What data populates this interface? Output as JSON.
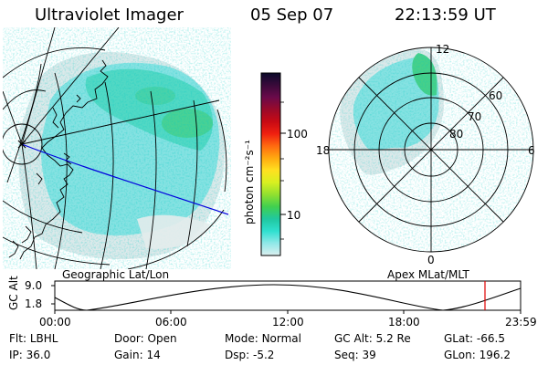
{
  "header": {
    "instrument": "Ultraviolet Imager",
    "date": "05 Sep 07",
    "time": "22:13:59 UT"
  },
  "left_panel": {
    "caption": "Geographic Lat/Lon"
  },
  "colorbar": {
    "unit_label": "photon cm⁻²s⁻¹",
    "ticks": [
      "100",
      "10"
    ],
    "colors": [
      "#0a0a2a",
      "#3a0a3a",
      "#6a0a4a",
      "#9a0a2a",
      "#c80a14",
      "#f02010",
      "#ff6a10",
      "#ffaa10",
      "#ffe020",
      "#d8f020",
      "#90e030",
      "#40d050",
      "#20c8a0",
      "#30e0d0",
      "#90e8e8",
      "#dcefef"
    ]
  },
  "right_panel": {
    "caption": "Apex MLat/MLT",
    "mlt_labels": {
      "top": "12",
      "bottom": "0",
      "left": "18",
      "right": "6"
    },
    "lat_labels": [
      "60",
      "70",
      "80"
    ]
  },
  "altitude_plot": {
    "ylabel": "GC Alt",
    "ymax_label": "9.0",
    "ymin_label": "1.8",
    "time_ticks": [
      "00:00",
      "06:00",
      "12:00",
      "18:00",
      "23:59"
    ],
    "marker_color": "#e00000"
  },
  "status": {
    "row1": [
      {
        "key": "Flt:",
        "value": "LBHL"
      },
      {
        "key": "Door:",
        "value": "Open"
      },
      {
        "key": "Mode:",
        "value": "Normal"
      },
      {
        "key": "GC Alt:",
        "value": "5.2 Re"
      },
      {
        "key": "GLat:",
        "value": "-66.5"
      }
    ],
    "row2": [
      {
        "key": "IP:",
        "value": "36.0"
      },
      {
        "key": "Gain:",
        "value": "14"
      },
      {
        "key": "Dsp:",
        "value": "-5.2"
      },
      {
        "key": "Seq:",
        "value": "39"
      },
      {
        "key": "GLon:",
        "value": "196.2"
      }
    ]
  }
}
